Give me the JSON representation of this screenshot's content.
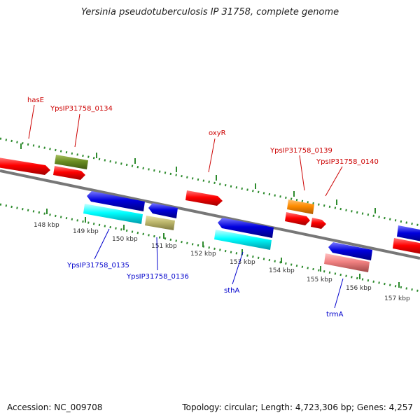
{
  "title": "Yersinia pseudotuberculosis IP 31758, complete genome",
  "footer": {
    "accession": "Accession: NC_009708",
    "summary": "Topology: circular; Length: 4,723,306 bp; Genes: 4,257"
  },
  "colors": {
    "backbone": "#777777",
    "tick": "#2e8b2e",
    "red": "#ff0000",
    "blue": "#0000dd",
    "cyan": "#00ffff",
    "olive": "#6b8e23",
    "khaki": "#bdb76b",
    "orange": "#ff8c00",
    "pink": "#f08080",
    "label_forward": "#cc0000",
    "label_reverse": "#0000cc"
  },
  "scale_labels": [
    "148 kbp",
    "149 kbp",
    "150 kbp",
    "151 kbp",
    "152 kbp",
    "153 kbp",
    "154 kbp",
    "155 kbp",
    "156 kbp",
    "157 kbp"
  ],
  "genes": [
    {
      "name": "hasE",
      "strand": "forward"
    },
    {
      "name": "YpsIP31758_0134",
      "strand": "forward"
    },
    {
      "name": "oxyR",
      "strand": "forward"
    },
    {
      "name": "YpsIP31758_0139",
      "strand": "forward"
    },
    {
      "name": "YpsIP31758_0140",
      "strand": "forward"
    },
    {
      "name": "YpsIP31758_0135",
      "strand": "reverse"
    },
    {
      "name": "YpsIP31758_0136",
      "strand": "reverse"
    },
    {
      "name": "sthA",
      "strand": "reverse"
    },
    {
      "name": "trmA",
      "strand": "reverse"
    }
  ]
}
